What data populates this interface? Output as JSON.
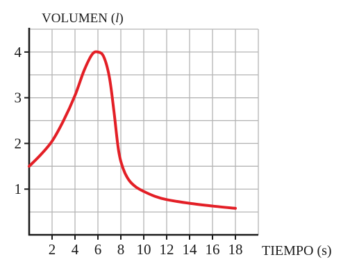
{
  "chart_data": {
    "type": "line",
    "ylabel": "VOLUMEN (",
    "ylabel_italic": "l",
    "ylabel_close": ")",
    "xlabel": "TIEMPO (s)",
    "xlim": [
      0,
      18
    ],
    "ylim": [
      0,
      4.5
    ],
    "x_ticks": [
      2,
      4,
      6,
      8,
      10,
      12,
      14,
      16,
      18
    ],
    "y_ticks": [
      1,
      2,
      3,
      4
    ],
    "grid": true,
    "grid_step_x": 2,
    "grid_step_y": 0.5,
    "series": [
      {
        "color": "#e31f26",
        "x": [
          0,
          1,
          2,
          3,
          4,
          4.8,
          5.5,
          6,
          6.5,
          7,
          7.4,
          7.8,
          8.2,
          8.7,
          9.3,
          10,
          11,
          12,
          14,
          16,
          18
        ],
        "y": [
          1.5,
          1.75,
          2.05,
          2.5,
          3.05,
          3.6,
          3.95,
          4.0,
          3.9,
          3.45,
          2.7,
          1.85,
          1.45,
          1.2,
          1.05,
          0.95,
          0.84,
          0.77,
          0.69,
          0.63,
          0.58
        ]
      }
    ]
  },
  "colors": {
    "curve": "#e31f26",
    "grid": "#b4b4b4",
    "axis": "#1a1a1a"
  }
}
